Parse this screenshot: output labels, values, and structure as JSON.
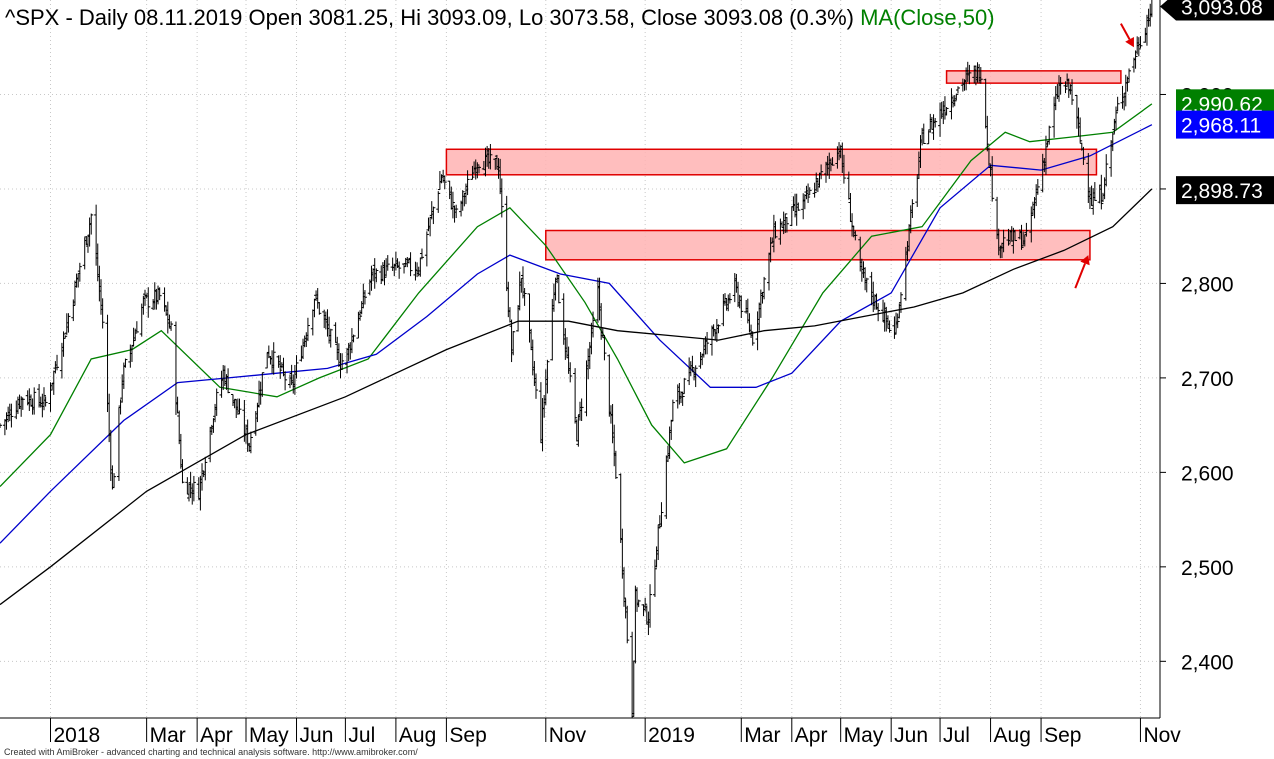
{
  "header": {
    "symbol": "^SPX",
    "interval_date": " - Daily 08.11.2019",
    "ohlc": " Open 3081.25, Hi 3093.09, Lo 3073.58, Close 3093.08 (0.3%)",
    "indicator": " MA(Close,50)"
  },
  "footer": {
    "credit": "Created with AmiBroker - advanced charting and technical analysis software. http://www.amibroker.com/"
  },
  "colors": {
    "price": "#000000",
    "ma50": "#008000",
    "ma100": "#0000cc",
    "ma200": "#000000",
    "zone_fill": "#ffb3b3",
    "zone_stroke": "#e00000",
    "arrow": "#e00000"
  },
  "chart_data": {
    "type": "ohlc",
    "title": "^SPX - Daily 08.11.2019 Open 3081.25, Hi 3093.09, Lo 3073.58, Close 3093.08 (0.3%)",
    "ylim": [
      2340,
      3100
    ],
    "xlim": [
      "2017-12-01",
      "2019-11-13"
    ],
    "yticks": [
      2400,
      2500,
      2600,
      2700,
      2800,
      2900,
      3000
    ],
    "ytick_labels": [
      "2,400",
      "2,500",
      "2,600",
      "2,700",
      "2,800",
      "2,900",
      "3,000"
    ],
    "xticks": [
      {
        "date": "2018-01-01",
        "label": "2018"
      },
      {
        "date": "2018-03-01",
        "label": "Mar"
      },
      {
        "date": "2018-04-01",
        "label": "Apr"
      },
      {
        "date": "2018-05-01",
        "label": "May"
      },
      {
        "date": "2018-06-01",
        "label": "Jun"
      },
      {
        "date": "2018-07-01",
        "label": "Jul"
      },
      {
        "date": "2018-08-01",
        "label": "Aug"
      },
      {
        "date": "2018-09-01",
        "label": "Sep"
      },
      {
        "date": "2018-11-01",
        "label": "Nov"
      },
      {
        "date": "2019-01-01",
        "label": "2019"
      },
      {
        "date": "2019-03-01",
        "label": "Mar"
      },
      {
        "date": "2019-04-01",
        "label": "Apr"
      },
      {
        "date": "2019-05-01",
        "label": "May"
      },
      {
        "date": "2019-06-01",
        "label": "Jun"
      },
      {
        "date": "2019-07-01",
        "label": "Jul"
      },
      {
        "date": "2019-08-01",
        "label": "Aug"
      },
      {
        "date": "2019-09-01",
        "label": "Sep"
      },
      {
        "date": "2019-11-01",
        "label": "Nov"
      }
    ],
    "price_path": [
      [
        "2017-12-01",
        2650
      ],
      [
        "2017-12-15",
        2680
      ],
      [
        "2017-12-29",
        2673
      ],
      [
        "2018-01-10",
        2750
      ],
      [
        "2018-01-26",
        2872
      ],
      [
        "2018-02-02",
        2760
      ],
      [
        "2018-02-08",
        2581
      ],
      [
        "2018-02-14",
        2700
      ],
      [
        "2018-02-27",
        2780
      ],
      [
        "2018-03-09",
        2786
      ],
      [
        "2018-03-16",
        2750
      ],
      [
        "2018-03-23",
        2588
      ],
      [
        "2018-04-02",
        2581
      ],
      [
        "2018-04-10",
        2656
      ],
      [
        "2018-04-17",
        2706
      ],
      [
        "2018-05-03",
        2630
      ],
      [
        "2018-05-14",
        2730
      ],
      [
        "2018-05-29",
        2689
      ],
      [
        "2018-06-12",
        2786
      ],
      [
        "2018-06-28",
        2716
      ],
      [
        "2018-07-02",
        2726
      ],
      [
        "2018-07-17",
        2809
      ],
      [
        "2018-07-31",
        2816
      ],
      [
        "2018-08-15",
        2818
      ],
      [
        "2018-08-29",
        2914
      ],
      [
        "2018-09-07",
        2872
      ],
      [
        "2018-09-20",
        2931
      ],
      [
        "2018-10-03",
        2925
      ],
      [
        "2018-10-11",
        2728
      ],
      [
        "2018-10-17",
        2809
      ],
      [
        "2018-10-29",
        2641
      ],
      [
        "2018-11-07",
        2813
      ],
      [
        "2018-11-20",
        2641
      ],
      [
        "2018-12-03",
        2790
      ],
      [
        "2018-12-14",
        2600
      ],
      [
        "2018-12-24",
        2351
      ],
      [
        "2018-12-26",
        2467
      ],
      [
        "2019-01-03",
        2447
      ],
      [
        "2019-01-18",
        2670
      ],
      [
        "2019-02-04",
        2724
      ],
      [
        "2019-02-25",
        2796
      ],
      [
        "2019-03-08",
        2743
      ],
      [
        "2019-03-21",
        2854
      ],
      [
        "2019-04-10",
        2888
      ],
      [
        "2019-04-30",
        2945
      ],
      [
        "2019-05-13",
        2811
      ],
      [
        "2019-06-03",
        2744
      ],
      [
        "2019-06-20",
        2954
      ],
      [
        "2019-07-15",
        3014
      ],
      [
        "2019-07-26",
        3025
      ],
      [
        "2019-08-05",
        2844
      ],
      [
        "2019-08-15",
        2847
      ],
      [
        "2019-08-23",
        2847
      ],
      [
        "2019-09-12",
        3009
      ],
      [
        "2019-09-19",
        3006
      ],
      [
        "2019-10-02",
        2887
      ],
      [
        "2019-10-08",
        2893
      ],
      [
        "2019-10-18",
        2986
      ],
      [
        "2019-10-28",
        3039
      ],
      [
        "2019-11-08",
        3093
      ]
    ],
    "series": [
      {
        "name": "MA(Close,50)",
        "color": "#008000",
        "values": [
          [
            "2017-12-01",
            2585
          ],
          [
            "2018-01-01",
            2640
          ],
          [
            "2018-01-26",
            2720
          ],
          [
            "2018-02-20",
            2730
          ],
          [
            "2018-03-10",
            2750
          ],
          [
            "2018-04-15",
            2690
          ],
          [
            "2018-05-20",
            2680
          ],
          [
            "2018-06-15",
            2700
          ],
          [
            "2018-07-15",
            2720
          ],
          [
            "2018-08-15",
            2790
          ],
          [
            "2018-09-20",
            2860
          ],
          [
            "2018-10-10",
            2880
          ],
          [
            "2018-11-01",
            2840
          ],
          [
            "2018-11-25",
            2780
          ],
          [
            "2018-12-15",
            2720
          ],
          [
            "2019-01-05",
            2650
          ],
          [
            "2019-01-25",
            2610
          ],
          [
            "2019-02-20",
            2625
          ],
          [
            "2019-03-20",
            2700
          ],
          [
            "2019-04-20",
            2790
          ],
          [
            "2019-05-20",
            2850
          ],
          [
            "2019-06-20",
            2860
          ],
          [
            "2019-07-20",
            2930
          ],
          [
            "2019-08-10",
            2960
          ],
          [
            "2019-08-25",
            2950
          ],
          [
            "2019-09-20",
            2955
          ],
          [
            "2019-10-15",
            2960
          ],
          [
            "2019-11-08",
            2990
          ]
        ]
      },
      {
        "name": "",
        "color": "#0000cc",
        "values": [
          [
            "2017-12-01",
            2525
          ],
          [
            "2018-01-01",
            2580
          ],
          [
            "2018-02-15",
            2655
          ],
          [
            "2018-03-20",
            2695
          ],
          [
            "2018-04-20",
            2700
          ],
          [
            "2018-05-20",
            2705
          ],
          [
            "2018-06-20",
            2710
          ],
          [
            "2018-07-20",
            2725
          ],
          [
            "2018-08-20",
            2765
          ],
          [
            "2018-09-20",
            2810
          ],
          [
            "2018-10-10",
            2830
          ],
          [
            "2018-11-10",
            2810
          ],
          [
            "2018-12-10",
            2800
          ],
          [
            "2019-01-10",
            2740
          ],
          [
            "2019-02-10",
            2690
          ],
          [
            "2019-03-10",
            2690
          ],
          [
            "2019-04-01",
            2705
          ],
          [
            "2019-05-01",
            2760
          ],
          [
            "2019-06-01",
            2790
          ],
          [
            "2019-07-01",
            2880
          ],
          [
            "2019-08-01",
            2925
          ],
          [
            "2019-09-01",
            2920
          ],
          [
            "2019-10-01",
            2935
          ],
          [
            "2019-11-08",
            2968
          ]
        ]
      },
      {
        "name": "",
        "color": "#000000",
        "values": [
          [
            "2017-12-01",
            2460
          ],
          [
            "2018-01-01",
            2500
          ],
          [
            "2018-03-01",
            2580
          ],
          [
            "2018-05-01",
            2640
          ],
          [
            "2018-07-01",
            2680
          ],
          [
            "2018-09-01",
            2730
          ],
          [
            "2018-10-15",
            2760
          ],
          [
            "2018-11-15",
            2760
          ],
          [
            "2018-12-15",
            2750
          ],
          [
            "2019-01-15",
            2745
          ],
          [
            "2019-02-15",
            2740
          ],
          [
            "2019-03-15",
            2750
          ],
          [
            "2019-04-15",
            2755
          ],
          [
            "2019-05-15",
            2765
          ],
          [
            "2019-06-15",
            2775
          ],
          [
            "2019-07-15",
            2790
          ],
          [
            "2019-08-15",
            2815
          ],
          [
            "2019-09-15",
            2835
          ],
          [
            "2019-10-15",
            2860
          ],
          [
            "2019-11-08",
            2900
          ]
        ]
      }
    ],
    "zones": [
      {
        "x0": "2018-09-01",
        "x1": "2019-10-05",
        "y0": 2915,
        "y1": 2942
      },
      {
        "x0": "2018-11-01",
        "x1": "2019-10-01",
        "y0": 2825,
        "y1": 2856
      },
      {
        "x0": "2019-07-05",
        "x1": "2019-10-20",
        "y0": 3012,
        "y1": 3025
      }
    ],
    "value_labels": [
      {
        "value": "3,093.08",
        "y": 3093.08,
        "bg": "#000000",
        "fg": "#ffffff"
      },
      {
        "value": "2,990.62",
        "y": 2990.62,
        "bg": "#008000",
        "fg": "#ffffff"
      },
      {
        "value": "2,968.11",
        "y": 2968.11,
        "bg": "#0000ff",
        "fg": "#ffffff"
      },
      {
        "value": "2,898.73",
        "y": 2898.73,
        "bg": "#000000",
        "fg": "#ffffff"
      }
    ],
    "annotations": [
      {
        "type": "arrow",
        "tip": [
          "2019-10-28",
          3050
        ],
        "tail": [
          "2019-10-20",
          3075
        ]
      },
      {
        "type": "arrow",
        "tip": [
          "2019-09-30",
          2830
        ],
        "tail": [
          "2019-09-22",
          2795
        ]
      }
    ]
  }
}
